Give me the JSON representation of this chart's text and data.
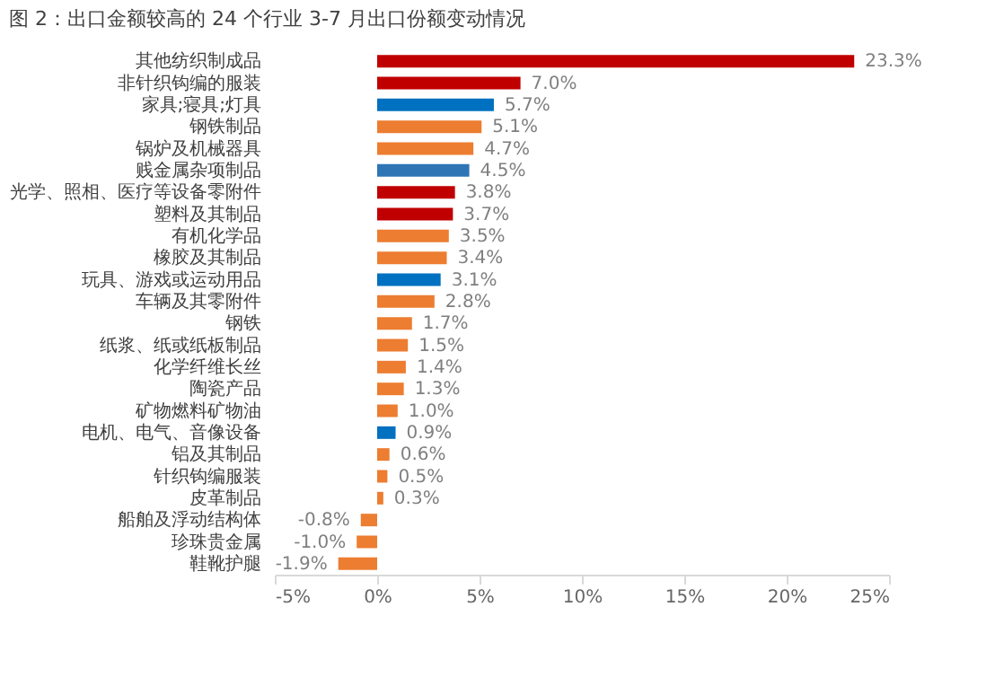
{
  "chart_data": {
    "type": "bar",
    "orientation": "horizontal",
    "title": "图 2：出口金额较高的 24 个行业 3-7 月出口份额变动情况",
    "categories": [
      "其他纺织制成品",
      "非针织钩编的服装",
      "家具;寝具;灯具",
      "钢铁制品",
      "锅炉及机械器具",
      "贱金属杂项制品",
      "光学、照相、医疗等设备零附件",
      "塑料及其制品",
      "有机化学品",
      "橡胶及其制品",
      "玩具、游戏或运动用品",
      "车辆及其零附件",
      "钢铁",
      "纸浆、纸或纸板制品",
      "化学纤维长丝",
      "陶瓷产品",
      "矿物燃料矿物油",
      "电机、电气、音像设备",
      "铝及其制品",
      "针织钩编服装",
      "皮革制品",
      "船舶及浮动结构体",
      "珍珠贵金属",
      "鞋靴护腿"
    ],
    "values": [
      23.3,
      7.0,
      5.7,
      5.1,
      4.7,
      4.5,
      3.8,
      3.7,
      3.5,
      3.4,
      3.1,
      2.8,
      1.7,
      1.5,
      1.4,
      1.3,
      1.0,
      0.9,
      0.6,
      0.5,
      0.3,
      -0.8,
      -1.0,
      -1.9
    ],
    "value_labels": [
      "23.3%",
      "7.0%",
      "5.7%",
      "5.1%",
      "4.7%",
      "4.5%",
      "3.8%",
      "3.7%",
      "3.5%",
      "3.4%",
      "3.1%",
      "2.8%",
      "1.7%",
      "1.5%",
      "1.4%",
      "1.3%",
      "1.0%",
      "0.9%",
      "0.6%",
      "0.5%",
      "0.3%",
      "-0.8%",
      "-1.0%",
      "-1.9%"
    ],
    "colors": [
      "#c00000",
      "#c00000",
      "#0070c0",
      "#ed7d31",
      "#ed7d31",
      "#2e75b6",
      "#c00000",
      "#c00000",
      "#ed7d31",
      "#ed7d31",
      "#0070c0",
      "#ed7d31",
      "#ed7d31",
      "#ed7d31",
      "#ed7d31",
      "#ed7d31",
      "#ed7d31",
      "#0070c0",
      "#ed7d31",
      "#ed7d31",
      "#ed7d31",
      "#ed7d31",
      "#ed7d31",
      "#ed7d31"
    ],
    "xlim": [
      -5,
      25
    ],
    "xticks": [
      {
        "value": -5,
        "label": "-5%"
      },
      {
        "value": 0,
        "label": "0%"
      },
      {
        "value": 5,
        "label": "5%"
      },
      {
        "value": 10,
        "label": "10%"
      },
      {
        "value": 15,
        "label": "15%"
      },
      {
        "value": 20,
        "label": "20%"
      },
      {
        "value": 25,
        "label": "25%"
      }
    ],
    "grid": false
  }
}
